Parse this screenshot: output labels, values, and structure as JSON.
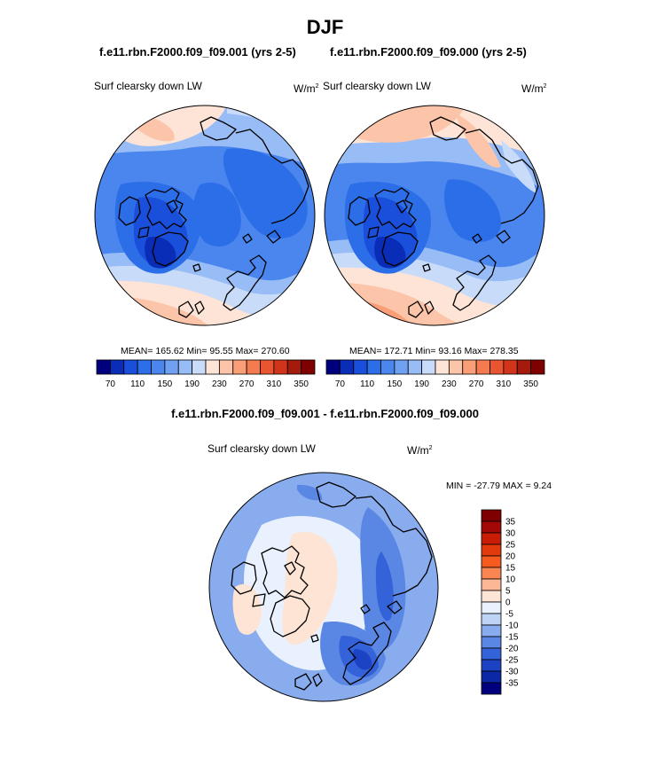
{
  "page_title": "DJF",
  "chart_data": [
    {
      "type": "polar-contour-map",
      "run": "f.e11.rbn.F2000.f09_f09.001 (yrs 2-5)",
      "variable": "Surf clearsky down LW",
      "units_base": "W/m",
      "units_exp": "2",
      "stats": "MEAN= 165.62  Min=  95.55  Max= 270.60",
      "colorbar_ticks": [
        "70",
        "110",
        "150",
        "190",
        "230",
        "270",
        "310",
        "350"
      ]
    },
    {
      "type": "polar-contour-map",
      "run": "f.e11.rbn.F2000.f09_f09.000 (yrs 2-5)",
      "variable": "Surf clearsky down LW",
      "units_base": "W/m",
      "units_exp": "2",
      "stats": "MEAN= 172.71  Min=  93.16  Max= 278.35",
      "colorbar_ticks": [
        "70",
        "110",
        "150",
        "190",
        "230",
        "270",
        "310",
        "350"
      ]
    },
    {
      "type": "polar-contour-map",
      "run": "f.e11.rbn.F2000.f09_f09.001 - f.e11.rbn.F2000.f09_f09.000",
      "variable": "Surf clearsky down LW",
      "units_base": "W/m",
      "units_exp": "2",
      "stats": "MIN = -27.79 MAX =   9.24",
      "colorbar_ticks": [
        "35",
        "30",
        "25",
        "20",
        "15",
        "10",
        "5",
        "0",
        "-5",
        "-10",
        "-15",
        "-20",
        "-25",
        "-30",
        "-35"
      ]
    }
  ],
  "colors": {
    "abs_scale": [
      "#00007f",
      "#0a2db8",
      "#1a4fdc",
      "#2b6ee8",
      "#4a86ee",
      "#6fa0f2",
      "#98bcf6",
      "#c8dcfa",
      "#fde4d6",
      "#fcc4a8",
      "#fa9e78",
      "#f47a50",
      "#e85530",
      "#d1341a",
      "#a41b0b",
      "#7f0000"
    ],
    "diff_scale": [
      "#7f0000",
      "#a30808",
      "#c81c06",
      "#e23a0c",
      "#f55a1e",
      "#f98552",
      "#fbb796",
      "#fde4d4",
      "#e8f1fd",
      "#bed4f6",
      "#88acee",
      "#5a86e4",
      "#3462d8",
      "#1c43c4",
      "#0b28a6",
      "#00007f"
    ]
  }
}
